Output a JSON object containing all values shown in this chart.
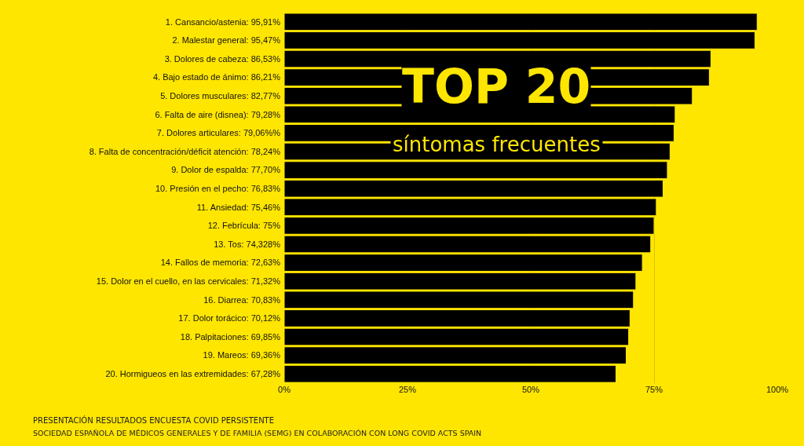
{
  "chart_data": {
    "type": "bar",
    "orientation": "horizontal",
    "title": "TOP 20",
    "subtitle": "síntomas frecuentes",
    "categories": [
      "1. Cansancio/astenia: 95,91%",
      "2. Malestar general: 95,47%",
      "3. Dolores de cabeza: 86,53%",
      "4. Bajo estado de ánimo: 86,21%",
      "5. Dolores musculares: 82,77%",
      "6. Falta de aire (disnea): 79,28%",
      "7. Dolores articulares: 79,06%%",
      "8. Falta de concentración/déficit atención: 78,24%",
      "9. Dolor de espalda: 77,70%",
      "10. Presión en el pecho: 76,83%",
      "11. Ansiedad: 75,46%",
      "12. Febrícula: 75%",
      "13. Tos: 74,328%",
      "14. Fallos de memoria: 72,63%",
      "15. Dolor en el cuello, en las cervicales: 71,32%",
      "16. Diarrea: 70,83%",
      "17. Dolor torácico: 70,12%",
      "18. Palpitaciones: 69,85%",
      "19. Mareos: 69,36%",
      "20. Hormigueos en las extremidades: 67,28%"
    ],
    "values": [
      95.91,
      95.47,
      86.53,
      86.21,
      82.77,
      79.28,
      79.06,
      78.24,
      77.7,
      76.83,
      75.46,
      75,
      74.328,
      72.63,
      71.32,
      70.83,
      70.12,
      69.85,
      69.36,
      67.28
    ],
    "color": "#000000",
    "xlim": [
      0,
      100
    ],
    "xticks": [
      {
        "value": 0,
        "label": "0%"
      },
      {
        "value": 25,
        "label": "25%"
      },
      {
        "value": 50,
        "label": "50%"
      },
      {
        "value": 75,
        "label": "75%"
      },
      {
        "value": 100,
        "label": "100%"
      }
    ],
    "grid": "x",
    "annotations": [
      "PRESENTACIÓN RESULTADOS ENCUESTA COVID PERSISTENTE",
      "SOCIEDAD ESPAÑOLA DE MÉDICOS GENERALES Y DE FAMILIA (SEMG) EN COLABORACIÓN CON LONG COVID ACTS SPAIN"
    ]
  }
}
